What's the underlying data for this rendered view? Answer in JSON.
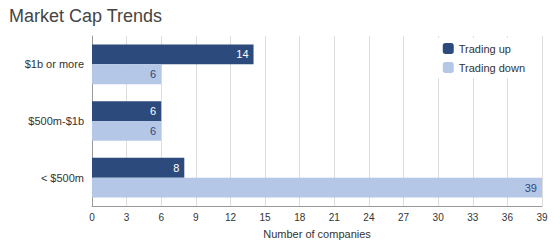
{
  "chart_data": {
    "type": "bar",
    "title": "Market Cap Trends",
    "orientation": "horizontal",
    "categories": [
      "$1b or more",
      "$500m-$1b",
      "< $500m"
    ],
    "series": [
      {
        "name": "Trading up",
        "color": "#2d4a7c",
        "values": [
          14,
          6,
          8
        ]
      },
      {
        "name": "Trading down",
        "color": "#b4c7e7",
        "values": [
          6,
          6,
          39
        ]
      }
    ],
    "xlabel": "Number of companies",
    "xlim": [
      0,
      39
    ],
    "xticks": [
      0,
      3,
      6,
      9,
      12,
      15,
      18,
      21,
      24,
      27,
      30,
      33,
      36,
      39
    ],
    "grid": true,
    "legend": "upper right",
    "data_labels": true
  }
}
